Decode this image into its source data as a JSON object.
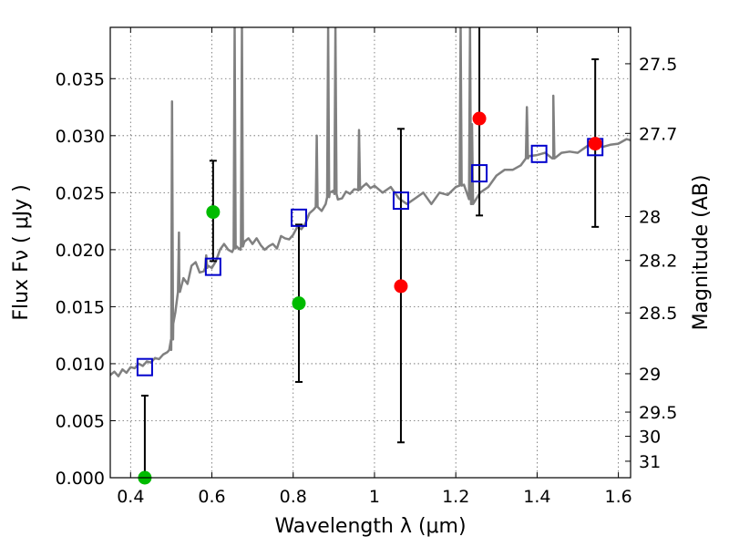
{
  "chart_data": {
    "type": "scatter",
    "xlabel": "Wavelength  λ (μm)",
    "ylabel": "Flux  Fν  ( μJy )",
    "y2label": "Magnitude (AB)",
    "xlim": [
      0.35,
      1.63
    ],
    "ylim": [
      0.0,
      0.0395
    ],
    "grid": true,
    "x_ticks": [
      {
        "value": 0.4,
        "label": "0.4"
      },
      {
        "value": 0.6,
        "label": "0.6"
      },
      {
        "value": 0.8,
        "label": "0.8"
      },
      {
        "value": 1.0,
        "label": "1"
      },
      {
        "value": 1.2,
        "label": "1.2"
      },
      {
        "value": 1.4,
        "label": "1.4"
      },
      {
        "value": 1.6,
        "label": "1.6"
      }
    ],
    "y_ticks": [
      {
        "value": 0.0,
        "label": "0.000"
      },
      {
        "value": 0.005,
        "label": "0.005"
      },
      {
        "value": 0.01,
        "label": "0.010"
      },
      {
        "value": 0.015,
        "label": "0.015"
      },
      {
        "value": 0.02,
        "label": "0.020"
      },
      {
        "value": 0.025,
        "label": "0.025"
      },
      {
        "value": 0.03,
        "label": "0.030"
      },
      {
        "value": 0.035,
        "label": "0.035"
      }
    ],
    "mag_ticks": [
      {
        "value": 27.5,
        "label": "27.5"
      },
      {
        "value": 27.7,
        "label": "27.7"
      },
      {
        "value": 28.0,
        "label": "28"
      },
      {
        "value": 28.2,
        "label": "28.2"
      },
      {
        "value": 28.5,
        "label": "28.5"
      },
      {
        "value": 29.0,
        "label": "29"
      },
      {
        "value": 29.5,
        "label": "29.5"
      },
      {
        "value": 30.0,
        "label": "30"
      },
      {
        "value": 31.0,
        "label": "31"
      }
    ],
    "colors": {
      "model": "#808080",
      "model_points": "#0000cc",
      "green": "#00bb00",
      "red": "#ff0000",
      "errorbar": "#000000"
    },
    "model_spectrum": {
      "x": [
        0.35,
        0.36,
        0.37,
        0.38,
        0.39,
        0.4,
        0.41,
        0.42,
        0.43,
        0.44,
        0.45,
        0.46,
        0.47,
        0.48,
        0.49,
        0.495,
        0.5,
        0.505,
        0.51,
        0.52,
        0.53,
        0.54,
        0.55,
        0.56,
        0.57,
        0.58,
        0.59,
        0.6,
        0.61,
        0.62,
        0.63,
        0.64,
        0.65,
        0.66,
        0.67,
        0.68,
        0.69,
        0.7,
        0.71,
        0.72,
        0.73,
        0.74,
        0.75,
        0.76,
        0.77,
        0.78,
        0.79,
        0.8,
        0.81,
        0.82,
        0.83,
        0.84,
        0.85,
        0.86,
        0.87,
        0.88,
        0.89,
        0.9,
        0.91,
        0.92,
        0.93,
        0.94,
        0.95,
        0.96,
        0.97,
        0.98,
        0.99,
        1.0,
        1.02,
        1.04,
        1.06,
        1.08,
        1.1,
        1.12,
        1.14,
        1.16,
        1.18,
        1.2,
        1.22,
        1.24,
        1.26,
        1.28,
        1.3,
        1.32,
        1.34,
        1.36,
        1.38,
        1.4,
        1.42,
        1.44,
        1.46,
        1.48,
        1.5,
        1.52,
        1.54,
        1.56,
        1.58,
        1.6,
        1.62,
        1.63
      ],
      "y": [
        0.009,
        0.0093,
        0.0089,
        0.0095,
        0.0092,
        0.0097,
        0.0096,
        0.01,
        0.0098,
        0.0102,
        0.0101,
        0.0105,
        0.0104,
        0.0108,
        0.011,
        0.0112,
        0.0112,
        0.0135,
        0.0145,
        0.0165,
        0.0175,
        0.017,
        0.0186,
        0.0189,
        0.018,
        0.0181,
        0.0186,
        0.0184,
        0.019,
        0.02,
        0.0205,
        0.02,
        0.0198,
        0.0203,
        0.02,
        0.0207,
        0.021,
        0.0205,
        0.021,
        0.0204,
        0.02,
        0.0203,
        0.0205,
        0.0201,
        0.0212,
        0.021,
        0.0209,
        0.0213,
        0.022,
        0.0218,
        0.0223,
        0.0232,
        0.0235,
        0.0238,
        0.0234,
        0.024,
        0.025,
        0.0252,
        0.0244,
        0.0245,
        0.0251,
        0.0249,
        0.0253,
        0.0252,
        0.0255,
        0.0258,
        0.0254,
        0.0256,
        0.025,
        0.0255,
        0.0245,
        0.024,
        0.0245,
        0.025,
        0.024,
        0.025,
        0.0248,
        0.0255,
        0.0257,
        0.024,
        0.025,
        0.0255,
        0.0265,
        0.027,
        0.027,
        0.0274,
        0.0282,
        0.0283,
        0.0285,
        0.028,
        0.0285,
        0.0286,
        0.0285,
        0.029,
        0.0295,
        0.029,
        0.0292,
        0.0293,
        0.0297,
        0.0296
      ],
      "spikes": [
        {
          "x": 0.502,
          "peak": 0.033
        },
        {
          "x": 0.519,
          "peak": 0.0215
        },
        {
          "x": 0.586,
          "peak": 0.0195
        },
        {
          "x": 0.656,
          "peak": 0.0395
        },
        {
          "x": 0.674,
          "peak": 0.0395
        },
        {
          "x": 0.858,
          "peak": 0.03
        },
        {
          "x": 0.886,
          "peak": 0.0395
        },
        {
          "x": 0.904,
          "peak": 0.0395
        },
        {
          "x": 0.962,
          "peak": 0.0305
        },
        {
          "x": 1.212,
          "peak": 0.0395
        },
        {
          "x": 1.235,
          "peak": 0.0395
        },
        {
          "x": 1.24,
          "peak": 0.031
        },
        {
          "x": 1.375,
          "peak": 0.0325
        },
        {
          "x": 1.44,
          "peak": 0.0335
        }
      ]
    },
    "model_points": {
      "x": [
        0.435,
        0.603,
        0.814,
        1.065,
        1.258,
        1.405,
        1.543
      ],
      "y": [
        0.0097,
        0.0185,
        0.0228,
        0.0243,
        0.0267,
        0.0284,
        0.029
      ]
    },
    "green_points": [
      {
        "x": 0.435,
        "y": 0.0,
        "yerr_low": 0.0,
        "yerr_high": 0.0072
      },
      {
        "x": 0.603,
        "y": 0.0233,
        "yerr_low": 0.019,
        "yerr_high": 0.0278
      },
      {
        "x": 0.814,
        "y": 0.0153,
        "yerr_low": 0.0084,
        "yerr_high": 0.0222
      }
    ],
    "red_points": [
      {
        "x": 1.065,
        "y": 0.0168,
        "yerr_low": 0.0031,
        "yerr_high": 0.0306
      },
      {
        "x": 1.258,
        "y": 0.0315,
        "yerr_low": 0.023,
        "yerr_high": 0.0395
      },
      {
        "x": 1.543,
        "y": 0.0293,
        "yerr_low": 0.022,
        "yerr_high": 0.0367
      }
    ]
  }
}
